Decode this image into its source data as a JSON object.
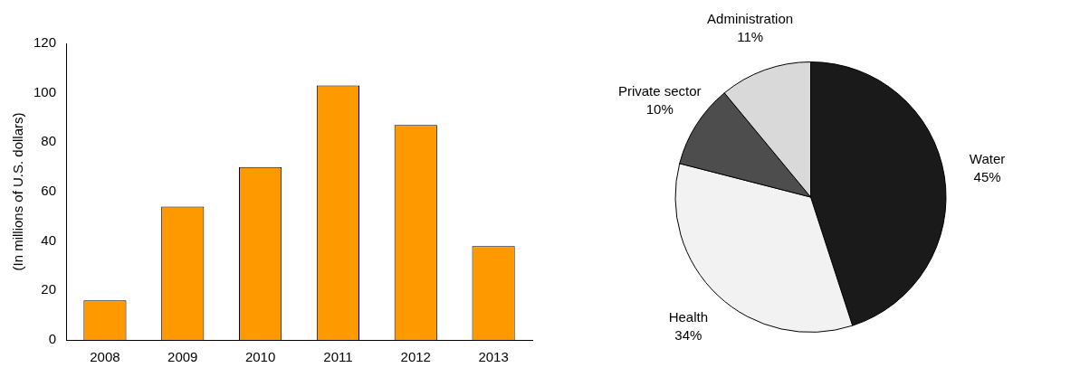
{
  "chart_data": [
    {
      "type": "bar",
      "ylabel": "(In millions of U.S. dollars)",
      "categories": [
        "2008",
        "2009",
        "2010",
        "2011",
        "2012",
        "2013"
      ],
      "values": [
        16,
        54,
        70,
        103,
        87,
        38
      ],
      "color": "#ff9900",
      "ylim": [
        0,
        120
      ],
      "yticks": [
        0,
        20,
        40,
        60,
        80,
        100,
        120
      ],
      "grid": false,
      "legend": false
    },
    {
      "type": "pie",
      "categories": [
        "Water",
        "Health",
        "Private sector",
        "Administration"
      ],
      "values": [
        45,
        34,
        10,
        11
      ],
      "value_labels": [
        "45%",
        "34%",
        "10%",
        "11%"
      ],
      "colors": [
        "#1a1a1a",
        "#f2f2f2",
        "#4d4d4d",
        "#d9d9d9"
      ],
      "legend": false
    }
  ]
}
